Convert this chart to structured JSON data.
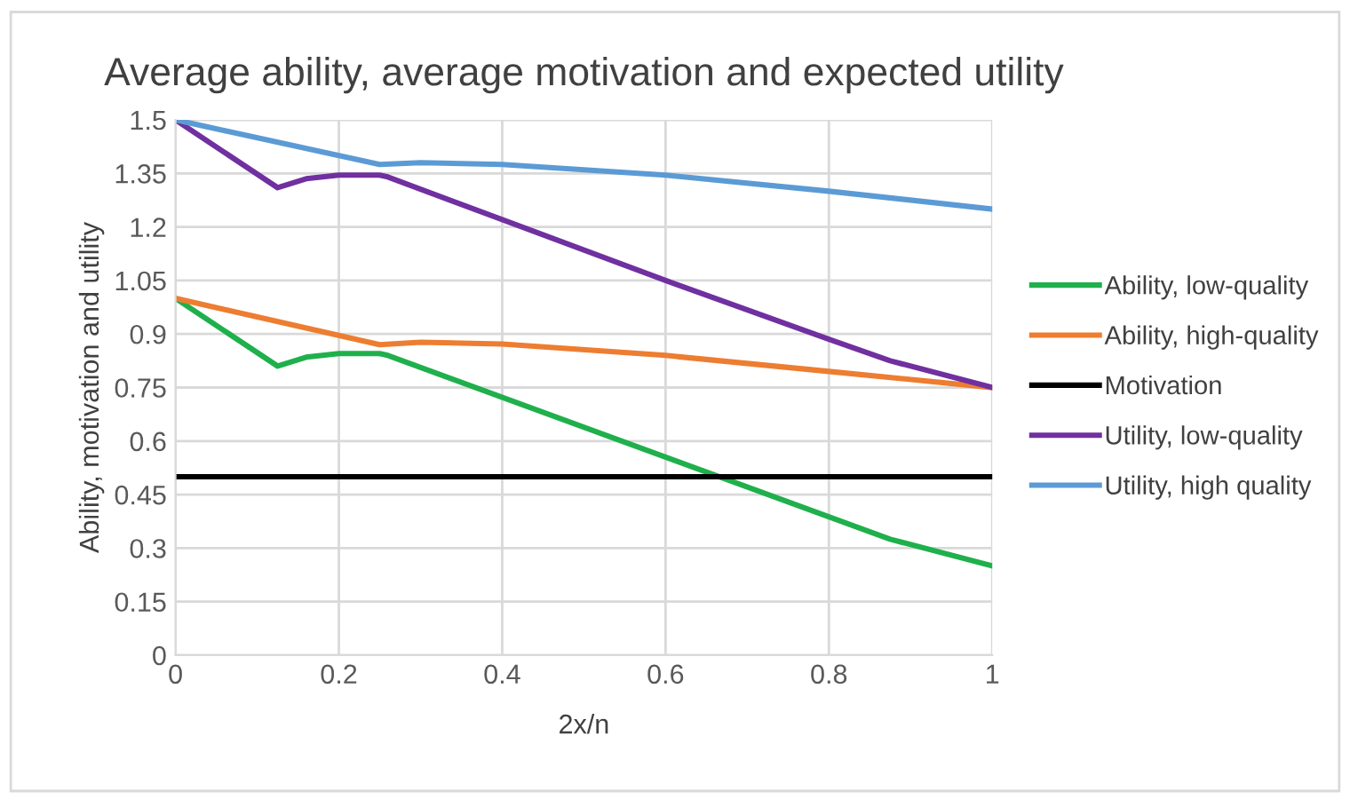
{
  "chart_data": {
    "type": "line",
    "title": "Average ability, average motivation and expected utility",
    "xlabel": "2x/n",
    "ylabel": "Ability, motivation and utility",
    "xlim": [
      0,
      1
    ],
    "xticks": [
      0,
      0.2,
      0.4,
      0.6,
      0.8,
      1
    ],
    "ylim": [
      0,
      1.5
    ],
    "yticks": [
      0,
      0.15,
      0.3,
      0.45,
      0.6,
      0.75,
      0.9,
      1.05,
      1.2,
      1.35,
      1.5
    ],
    "grid": true,
    "legend": "right",
    "line_style": "solid",
    "marker": "none",
    "series": [
      {
        "name": "Ability, low-quality",
        "color": "#1fb04c",
        "x": [
          0,
          0.125,
          0.16,
          0.2,
          0.25,
          0.26,
          0.6,
          0.875,
          1
        ],
        "values": [
          1.0,
          0.81,
          0.835,
          0.845,
          0.845,
          0.84,
          0.555,
          0.325,
          0.25
        ]
      },
      {
        "name": "Ability, high-quality",
        "color": "#ed7d31",
        "x": [
          0,
          0.25,
          0.3,
          0.4,
          0.6,
          0.8,
          1
        ],
        "values": [
          1.0,
          0.87,
          0.877,
          0.872,
          0.84,
          0.795,
          0.75
        ]
      },
      {
        "name": "Motivation",
        "color": "#000000",
        "x": [
          0,
          1
        ],
        "values": [
          0.5,
          0.5
        ]
      },
      {
        "name": "Utility, low-quality",
        "color": "#7030a0",
        "x": [
          0,
          0.125,
          0.16,
          0.2,
          0.25,
          0.26,
          0.6,
          0.8,
          0.875,
          1
        ],
        "values": [
          1.5,
          1.31,
          1.335,
          1.345,
          1.345,
          1.34,
          1.05,
          0.885,
          0.825,
          0.75
        ]
      },
      {
        "name": "Utility, high quality",
        "color": "#5b9bd5",
        "x": [
          0,
          0.25,
          0.3,
          0.4,
          0.6,
          0.8,
          1
        ],
        "values": [
          1.5,
          1.375,
          1.38,
          1.375,
          1.345,
          1.3,
          1.25
        ]
      }
    ]
  }
}
